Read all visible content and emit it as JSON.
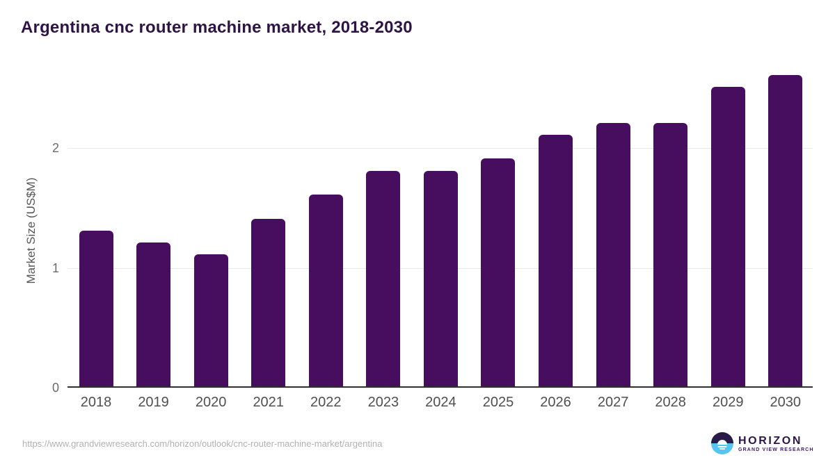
{
  "title": "Argentina cnc router machine market, 2018-2030",
  "chart_data": {
    "type": "bar",
    "title": "Argentina cnc router machine market, 2018-2030",
    "categories": [
      "2018",
      "2019",
      "2020",
      "2021",
      "2022",
      "2023",
      "2024",
      "2025",
      "2026",
      "2027",
      "2028",
      "2029",
      "2030"
    ],
    "values": [
      1.3,
      1.2,
      1.1,
      1.4,
      1.6,
      1.8,
      1.8,
      1.9,
      2.1,
      2.2,
      2.2,
      2.5,
      2.6
    ],
    "xlabel": "",
    "ylabel": "Market Size (US$M)",
    "ylim": [
      0,
      2.667
    ],
    "yticks": [
      0,
      1,
      2
    ],
    "grid": true,
    "legend": "none",
    "bar_color": "#470e5f"
  },
  "axes": {
    "y_label": "Market Size (US$M)"
  },
  "footer": {
    "source_url": "https://www.grandviewresearch.com/horizon/outlook/cnc-router-machine-market/argentina",
    "logo_name": "HORIZON",
    "logo_subtitle": "GRAND VIEW RESEARCH"
  },
  "colors": {
    "bar": "#470e5f",
    "title_text": "#2e1345",
    "axis_line": "#2f2f2f",
    "gridline": "#e8e8e8",
    "tick_text": "#6b6b6b",
    "x_label_text": "#4f4f4f",
    "url_text": "#b1b1b1",
    "logo_navy": "#2a1a47",
    "logo_blue": "#58c4f1"
  }
}
